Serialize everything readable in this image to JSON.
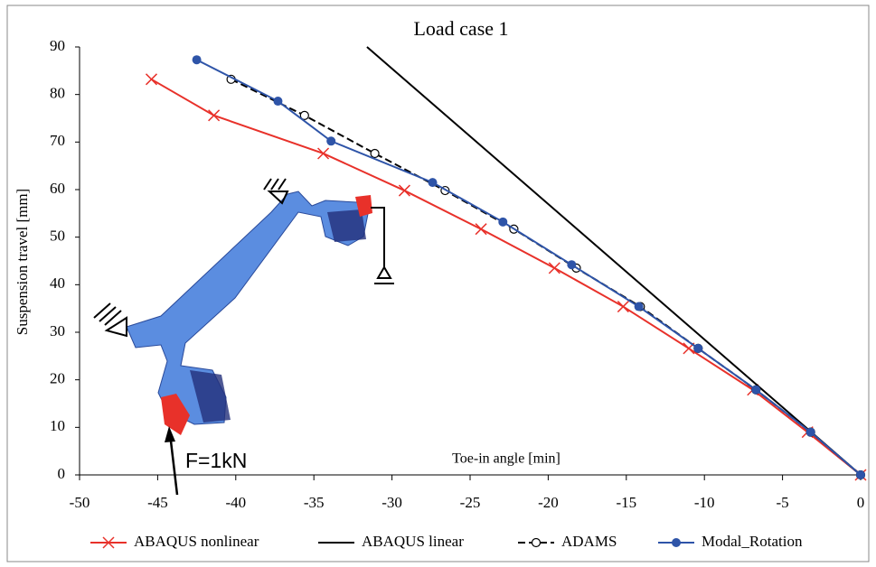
{
  "chart_data": {
    "type": "line",
    "title": "Load case 1",
    "x_label": "Toe-in angle [min]",
    "y_label": "Suspension travel [mm]",
    "annotation": "F=1kN",
    "xlim": [
      -50,
      0
    ],
    "xticks": [
      -50,
      -45,
      -40,
      -35,
      -30,
      -25,
      -20,
      -15,
      -10,
      -5,
      0
    ],
    "ylim": [
      0,
      90
    ],
    "yticks": [
      0,
      10,
      20,
      30,
      40,
      50,
      60,
      70,
      80,
      90
    ],
    "grid": false,
    "legend": "bottom",
    "series": [
      {
        "name": "ABAQUS nonlinear",
        "color": "#e8312a",
        "marker": "x",
        "dash": "solid",
        "x": [
          -45.4,
          -41.4,
          -34.4,
          -29.2,
          -24.3,
          -19.6,
          -15.2,
          -11.0,
          -6.9,
          -3.4,
          0
        ],
        "values": [
          83.2,
          75.6,
          67.6,
          59.8,
          51.7,
          43.5,
          35.4,
          26.6,
          17.9,
          9.0,
          0
        ]
      },
      {
        "name": "ABAQUS linear",
        "color": "#000000",
        "marker": "none",
        "dash": "solid",
        "x": [
          -31.6,
          0
        ],
        "values": [
          90,
          0
        ]
      },
      {
        "name": "ADAMS",
        "color": "#000000",
        "marker": "open-circle",
        "dash": "dashed",
        "x": [
          -40.3,
          -35.6,
          -31.1,
          -26.6,
          -22.2,
          -18.2,
          -14.1,
          -10.4,
          -6.7,
          -3.2,
          0
        ],
        "values": [
          83.2,
          75.6,
          67.6,
          59.8,
          51.7,
          43.5,
          35.4,
          26.6,
          17.9,
          9.0,
          0
        ]
      },
      {
        "name": "Modal_Rotation",
        "color": "#2e54a8",
        "marker": "filled-circle",
        "dash": "solid",
        "x": [
          -42.5,
          -37.3,
          -33.9,
          -27.4,
          -22.9,
          -18.5,
          -14.2,
          -10.4,
          -6.7,
          -3.2,
          0
        ],
        "values": [
          87.3,
          78.6,
          70.2,
          61.5,
          53.2,
          44.2,
          35.4,
          26.6,
          17.9,
          9.0,
          0
        ]
      }
    ]
  }
}
